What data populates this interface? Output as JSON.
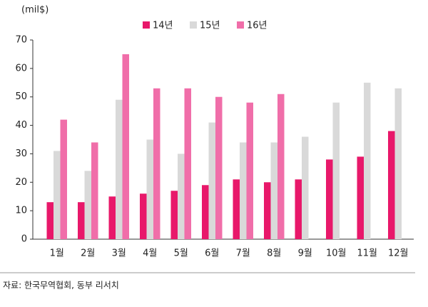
{
  "chart_data": {
    "type": "bar",
    "unit_label": "(mil$)",
    "source": "자료: 한국무역협회, 동부 리서치",
    "categories": [
      "1월",
      "2월",
      "3월",
      "4월",
      "5월",
      "6월",
      "7월",
      "8월",
      "9월",
      "10월",
      "11월",
      "12월"
    ],
    "series": [
      {
        "name": "14년",
        "color": "#e8186a",
        "values": [
          13,
          13,
          15,
          16,
          17,
          19,
          21,
          20,
          21,
          28,
          29,
          38
        ]
      },
      {
        "name": "15년",
        "color": "#d9d9d9",
        "values": [
          31,
          24,
          49,
          35,
          30,
          41,
          34,
          34,
          36,
          48,
          55,
          53
        ]
      },
      {
        "name": "16년",
        "color": "#f06ea9",
        "values": [
          42,
          34,
          65,
          53,
          53,
          50,
          48,
          51,
          null,
          null,
          null,
          null
        ]
      }
    ],
    "ylim": [
      0,
      70
    ],
    "yticks": [
      0,
      10,
      20,
      30,
      40,
      50,
      60,
      70
    ],
    "grid": false
  }
}
